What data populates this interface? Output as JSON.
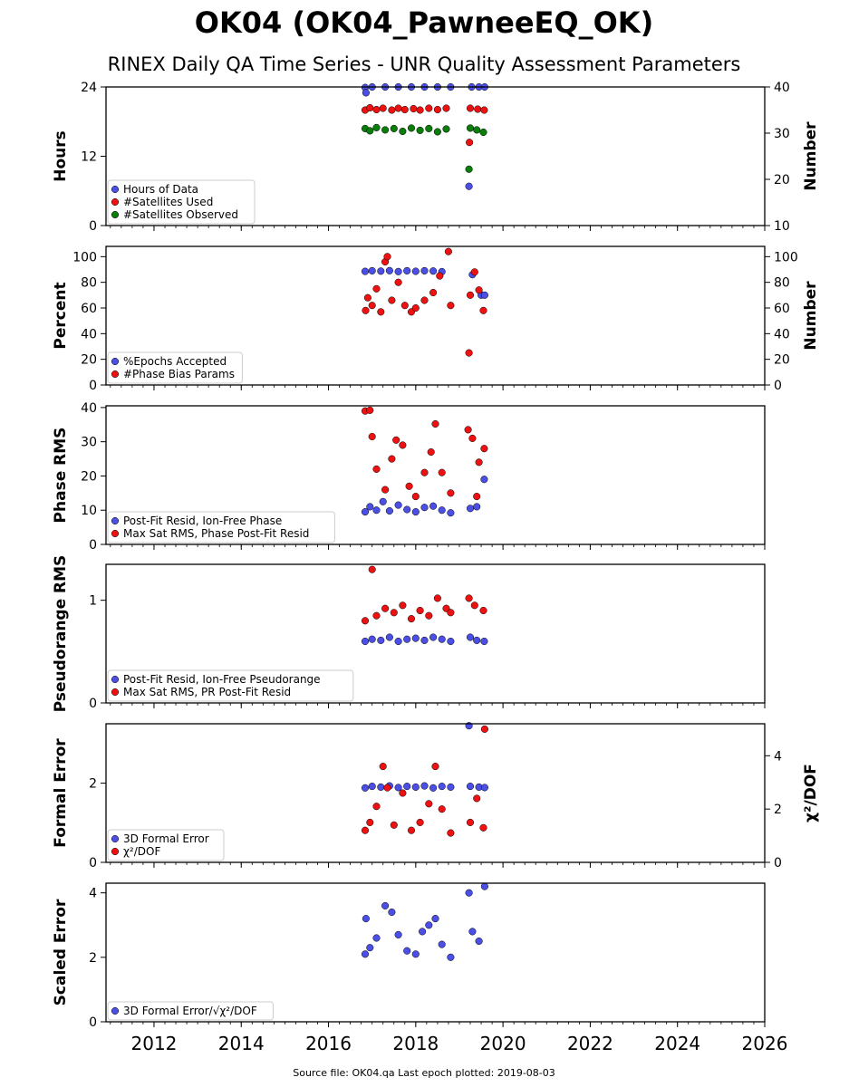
{
  "title": "OK04 (OK04_PawneeEQ_OK)",
  "subtitle": "RINEX Daily QA Time Series - UNR Quality Assessment Parameters",
  "footer": "Source file: OK04.qa Last epoch plotted: 2019-08-03",
  "x_axis": {
    "range": [
      2010.9,
      2026.0
    ],
    "tick_labels": [
      "2012",
      "2014",
      "2016",
      "2018",
      "2020",
      "2022",
      "2024",
      "2026"
    ]
  },
  "colors": {
    "blue": "#4b4fe6",
    "red": "#ee1111",
    "green": "#0a7d0a"
  },
  "chart_data": [
    {
      "type": "scatter",
      "ylabel": "Hours",
      "ylabel_right": "Number",
      "ylim": [
        0,
        24
      ],
      "yticks": [
        "0",
        "12",
        "24"
      ],
      "ylim_right": [
        10,
        40
      ],
      "yticks_right": [
        "10",
        "20",
        "30",
        "40"
      ],
      "grid": false,
      "legend_position": "lower-left",
      "legend": [
        "Hours of Data",
        "#Satellites Used",
        "#Satellites Observed"
      ],
      "series": [
        {
          "name": "Hours of Data",
          "axis": "left",
          "color": "#4b4fe6",
          "points": [
            [
              2016.84,
              23.9
            ],
            [
              2017.0,
              24.0
            ],
            [
              2017.3,
              24.0
            ],
            [
              2017.6,
              24.0
            ],
            [
              2017.9,
              24.0
            ],
            [
              2018.2,
              24.0
            ],
            [
              2018.5,
              24.0
            ],
            [
              2018.8,
              24.0
            ],
            [
              2019.28,
              24.0
            ],
            [
              2019.45,
              24.0
            ],
            [
              2019.58,
              24.0
            ],
            [
              2016.86,
              23.0
            ],
            [
              2019.22,
              6.8
            ]
          ]
        },
        {
          "name": "#Satellites Used",
          "axis": "right",
          "color": "#ee1111",
          "points": [
            [
              2016.84,
              35.0
            ],
            [
              2016.95,
              35.5
            ],
            [
              2017.1,
              35.1
            ],
            [
              2017.25,
              35.4
            ],
            [
              2017.45,
              35.0
            ],
            [
              2017.6,
              35.4
            ],
            [
              2017.75,
              35.1
            ],
            [
              2017.95,
              35.3
            ],
            [
              2018.1,
              35.0
            ],
            [
              2018.3,
              35.4
            ],
            [
              2018.5,
              35.1
            ],
            [
              2018.7,
              35.4
            ],
            [
              2019.25,
              35.4
            ],
            [
              2019.42,
              35.2
            ],
            [
              2019.57,
              35.0
            ],
            [
              2019.23,
              28.0
            ]
          ]
        },
        {
          "name": "#Satellites Observed",
          "axis": "right",
          "color": "#0a7d0a",
          "points": [
            [
              2016.84,
              31.0
            ],
            [
              2016.95,
              30.5
            ],
            [
              2017.1,
              31.2
            ],
            [
              2017.3,
              30.7
            ],
            [
              2017.5,
              31.0
            ],
            [
              2017.7,
              30.4
            ],
            [
              2017.9,
              31.1
            ],
            [
              2018.1,
              30.6
            ],
            [
              2018.3,
              31.0
            ],
            [
              2018.5,
              30.3
            ],
            [
              2018.7,
              30.9
            ],
            [
              2019.25,
              31.1
            ],
            [
              2019.4,
              30.7
            ],
            [
              2019.55,
              30.2
            ],
            [
              2019.22,
              22.2
            ]
          ]
        }
      ]
    },
    {
      "type": "scatter",
      "ylabel": "Percent",
      "ylabel_right": "Number",
      "ylim": [
        0,
        108
      ],
      "yticks": [
        "0",
        "20",
        "40",
        "60",
        "80",
        "100"
      ],
      "ylim_right": [
        0,
        108
      ],
      "yticks_right": [
        "0",
        "20",
        "40",
        "60",
        "80",
        "100"
      ],
      "grid": false,
      "legend_position": "lower-left",
      "legend": [
        "%Epochs Accepted",
        "#Phase Bias Params"
      ],
      "series": [
        {
          "name": "%Epochs Accepted",
          "axis": "left",
          "color": "#4b4fe6",
          "points": [
            [
              2016.84,
              88.5
            ],
            [
              2017.0,
              89.0
            ],
            [
              2017.2,
              88.7
            ],
            [
              2017.4,
              89.1
            ],
            [
              2017.6,
              88.4
            ],
            [
              2017.8,
              89.0
            ],
            [
              2018.0,
              88.6
            ],
            [
              2018.2,
              89.0
            ],
            [
              2018.4,
              88.8
            ],
            [
              2018.6,
              88.3
            ],
            [
              2019.3,
              86.0
            ],
            [
              2019.5,
              70.0
            ],
            [
              2019.58,
              70.0
            ]
          ]
        },
        {
          "name": "#Phase Bias Params",
          "axis": "right",
          "color": "#ee1111",
          "points": [
            [
              2016.85,
              58.0
            ],
            [
              2016.9,
              68.0
            ],
            [
              2017.0,
              62.0
            ],
            [
              2017.1,
              75.0
            ],
            [
              2017.2,
              57.0
            ],
            [
              2017.3,
              96.0
            ],
            [
              2017.35,
              100.0
            ],
            [
              2017.45,
              66.0
            ],
            [
              2017.6,
              80.0
            ],
            [
              2017.75,
              62.0
            ],
            [
              2017.9,
              57.0
            ],
            [
              2018.0,
              60.0
            ],
            [
              2018.2,
              66.0
            ],
            [
              2018.4,
              72.0
            ],
            [
              2018.55,
              85.0
            ],
            [
              2018.75,
              104.0
            ],
            [
              2018.8,
              62.0
            ],
            [
              2019.25,
              70.0
            ],
            [
              2019.35,
              88.0
            ],
            [
              2019.45,
              74.0
            ],
            [
              2019.55,
              58.0
            ],
            [
              2019.22,
              25.0
            ]
          ]
        }
      ]
    },
    {
      "type": "scatter",
      "ylabel": "Phase RMS",
      "ylim": [
        0,
        40.5
      ],
      "yticks": [
        "0",
        "10",
        "20",
        "30",
        "40"
      ],
      "grid": false,
      "legend_position": "lower-left",
      "legend": [
        "Post-Fit Resid, Ion-Free Phase",
        "Max Sat RMS, Phase Post-Fit Resid"
      ],
      "series": [
        {
          "name": "Post-Fit Resid, Ion-Free Phase",
          "axis": "left",
          "color": "#4b4fe6",
          "points": [
            [
              2016.84,
              9.5
            ],
            [
              2016.95,
              11.0
            ],
            [
              2017.1,
              10.0
            ],
            [
              2017.25,
              12.5
            ],
            [
              2017.4,
              9.8
            ],
            [
              2017.6,
              11.5
            ],
            [
              2017.8,
              10.2
            ],
            [
              2018.0,
              9.5
            ],
            [
              2018.2,
              10.8
            ],
            [
              2018.4,
              11.2
            ],
            [
              2018.6,
              10.0
            ],
            [
              2018.8,
              9.2
            ],
            [
              2019.25,
              10.5
            ],
            [
              2019.4,
              11.0
            ],
            [
              2019.57,
              19.0
            ]
          ]
        },
        {
          "name": "Max Sat RMS, Phase Post-Fit Resid",
          "axis": "right",
          "color": "#ee1111",
          "points": [
            [
              2016.84,
              39.0
            ],
            [
              2016.95,
              39.2
            ],
            [
              2017.0,
              31.5
            ],
            [
              2017.1,
              22.0
            ],
            [
              2017.3,
              16.0
            ],
            [
              2017.45,
              25.0
            ],
            [
              2017.55,
              30.5
            ],
            [
              2017.7,
              29.0
            ],
            [
              2017.85,
              17.0
            ],
            [
              2018.0,
              14.0
            ],
            [
              2018.2,
              21.0
            ],
            [
              2018.35,
              27.0
            ],
            [
              2018.45,
              35.2
            ],
            [
              2018.6,
              21.0
            ],
            [
              2018.8,
              15.0
            ],
            [
              2019.2,
              33.5
            ],
            [
              2019.3,
              31.0
            ],
            [
              2019.45,
              24.0
            ],
            [
              2019.57,
              28.0
            ],
            [
              2019.4,
              14.0
            ]
          ]
        }
      ]
    },
    {
      "type": "scatter",
      "ylabel": "Pseudorange RMS",
      "ylim": [
        0,
        1.35
      ],
      "yticks": [
        "0",
        "1"
      ],
      "grid": false,
      "legend_position": "lower-left",
      "legend": [
        "Post-Fit Resid, Ion-Free Pseudorange",
        "Max Sat RMS, PR Post-Fit Resid"
      ],
      "series": [
        {
          "name": "Post-Fit Resid, Ion-Free Pseudorange",
          "axis": "left",
          "color": "#4b4fe6",
          "points": [
            [
              2016.84,
              0.6
            ],
            [
              2017.0,
              0.62
            ],
            [
              2017.2,
              0.61
            ],
            [
              2017.4,
              0.64
            ],
            [
              2017.6,
              0.6
            ],
            [
              2017.8,
              0.62
            ],
            [
              2018.0,
              0.63
            ],
            [
              2018.2,
              0.61
            ],
            [
              2018.4,
              0.64
            ],
            [
              2018.6,
              0.62
            ],
            [
              2018.8,
              0.6
            ],
            [
              2019.25,
              0.64
            ],
            [
              2019.4,
              0.61
            ],
            [
              2019.57,
              0.6
            ]
          ]
        },
        {
          "name": "Max Sat RMS, PR Post-Fit Resid",
          "axis": "right",
          "color": "#ee1111",
          "points": [
            [
              2016.84,
              0.8
            ],
            [
              2017.0,
              1.3
            ],
            [
              2017.1,
              0.85
            ],
            [
              2017.3,
              0.92
            ],
            [
              2017.5,
              0.88
            ],
            [
              2017.7,
              0.95
            ],
            [
              2017.9,
              0.82
            ],
            [
              2018.1,
              0.9
            ],
            [
              2018.3,
              0.85
            ],
            [
              2018.5,
              1.02
            ],
            [
              2018.7,
              0.92
            ],
            [
              2018.8,
              0.88
            ],
            [
              2019.22,
              1.02
            ],
            [
              2019.35,
              0.95
            ],
            [
              2019.55,
              0.9
            ]
          ]
        }
      ]
    },
    {
      "type": "scatter",
      "ylabel": "Formal Error",
      "ylabel_right": "χ²/DOF",
      "ylim": [
        0,
        3.5
      ],
      "yticks": [
        "0",
        "2"
      ],
      "ylim_right": [
        0,
        5.2
      ],
      "yticks_right": [
        "0",
        "2",
        "4"
      ],
      "grid": false,
      "legend_position": "lower-left",
      "legend": [
        "3D Formal Error",
        "χ²/DOF"
      ],
      "series": [
        {
          "name": "3D Formal Error",
          "axis": "left",
          "color": "#4b4fe6",
          "points": [
            [
              2016.84,
              1.88
            ],
            [
              2017.0,
              1.92
            ],
            [
              2017.2,
              1.9
            ],
            [
              2017.4,
              1.93
            ],
            [
              2017.6,
              1.89
            ],
            [
              2017.8,
              1.92
            ],
            [
              2018.0,
              1.9
            ],
            [
              2018.2,
              1.93
            ],
            [
              2018.4,
              1.88
            ],
            [
              2018.6,
              1.92
            ],
            [
              2018.8,
              1.9
            ],
            [
              2019.25,
              1.92
            ],
            [
              2019.45,
              1.9
            ],
            [
              2019.58,
              1.89
            ],
            [
              2019.22,
              3.45
            ]
          ]
        },
        {
          "name": "χ²/DOF",
          "axis": "right",
          "color": "#ee1111",
          "points": [
            [
              2016.84,
              1.2
            ],
            [
              2016.95,
              1.5
            ],
            [
              2017.1,
              2.1
            ],
            [
              2017.25,
              3.6
            ],
            [
              2017.35,
              2.8
            ],
            [
              2017.5,
              1.4
            ],
            [
              2017.7,
              2.6
            ],
            [
              2017.9,
              1.2
            ],
            [
              2018.1,
              1.5
            ],
            [
              2018.3,
              2.2
            ],
            [
              2018.45,
              3.6
            ],
            [
              2018.6,
              2.0
            ],
            [
              2018.8,
              1.1
            ],
            [
              2019.25,
              1.5
            ],
            [
              2019.4,
              2.4
            ],
            [
              2019.55,
              1.3
            ],
            [
              2019.58,
              5.0
            ]
          ]
        }
      ]
    },
    {
      "type": "scatter",
      "ylabel": "Scaled Error",
      "ylim": [
        0,
        4.3
      ],
      "yticks": [
        "0",
        "2",
        "4"
      ],
      "grid": false,
      "legend_position": "lower-left",
      "legend": [
        "3D Formal Error/√χ²/DOF"
      ],
      "series": [
        {
          "name": "3D Formal Error/√χ²/DOF",
          "axis": "left",
          "color": "#4b4fe6",
          "points": [
            [
              2016.84,
              2.1
            ],
            [
              2016.86,
              3.2
            ],
            [
              2016.95,
              2.3
            ],
            [
              2017.1,
              2.6
            ],
            [
              2017.3,
              3.6
            ],
            [
              2017.45,
              3.4
            ],
            [
              2017.6,
              2.7
            ],
            [
              2017.8,
              2.2
            ],
            [
              2018.0,
              2.1
            ],
            [
              2018.15,
              2.8
            ],
            [
              2018.3,
              3.0
            ],
            [
              2018.45,
              3.2
            ],
            [
              2018.6,
              2.4
            ],
            [
              2018.8,
              2.0
            ],
            [
              2019.22,
              4.0
            ],
            [
              2019.3,
              2.8
            ],
            [
              2019.45,
              2.5
            ],
            [
              2019.58,
              4.2
            ]
          ]
        }
      ]
    }
  ]
}
